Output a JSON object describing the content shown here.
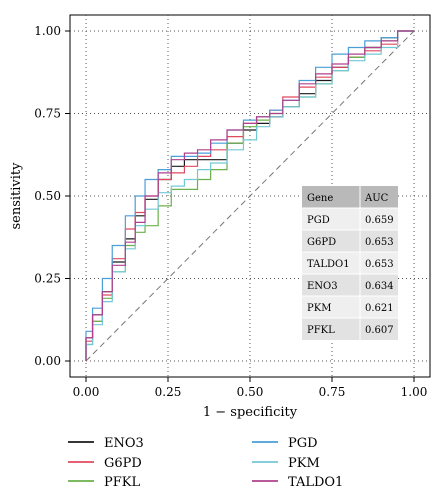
{
  "chart_data": {
    "type": "line",
    "title": "",
    "xlabel": "1 − specificity",
    "ylabel": "sensitivity",
    "xlim": [
      0,
      1
    ],
    "ylim": [
      0,
      1
    ],
    "xticks": [
      "0.00",
      "0.25",
      "0.50",
      "0.75",
      "1.00"
    ],
    "yticks": [
      "0.00",
      "0.25",
      "0.50",
      "0.75",
      "1.00"
    ],
    "grid": true,
    "legend_position": "bottom",
    "reference_line": "diagonal",
    "series": [
      {
        "name": "ENO3",
        "color": "#1a1a1a",
        "x": [
          0,
          0.02,
          0.05,
          0.08,
          0.12,
          0.15,
          0.18,
          0.22,
          0.26,
          0.3,
          0.34,
          0.38,
          0.43,
          0.48,
          0.52,
          0.56,
          0.6,
          0.65,
          0.7,
          0.75,
          0.8,
          0.85,
          0.9,
          0.95,
          1.0
        ],
        "y": [
          0,
          0.07,
          0.14,
          0.21,
          0.3,
          0.37,
          0.44,
          0.49,
          0.55,
          0.59,
          0.61,
          0.61,
          0.61,
          0.66,
          0.7,
          0.72,
          0.74,
          0.77,
          0.81,
          0.85,
          0.89,
          0.92,
          0.95,
          0.98,
          1.0
        ]
      },
      {
        "name": "G6PD",
        "color": "#e0495f",
        "x": [
          0,
          0.02,
          0.05,
          0.08,
          0.12,
          0.15,
          0.18,
          0.22,
          0.26,
          0.3,
          0.34,
          0.38,
          0.43,
          0.48,
          0.52,
          0.56,
          0.6,
          0.65,
          0.7,
          0.75,
          0.8,
          0.85,
          0.9,
          0.95,
          1.0
        ],
        "y": [
          0,
          0.06,
          0.12,
          0.2,
          0.31,
          0.4,
          0.45,
          0.5,
          0.55,
          0.57,
          0.59,
          0.62,
          0.64,
          0.68,
          0.72,
          0.74,
          0.76,
          0.8,
          0.83,
          0.86,
          0.89,
          0.92,
          0.94,
          0.96,
          1.0
        ]
      },
      {
        "name": "PFKL",
        "color": "#6bb04a",
        "x": [
          0,
          0.02,
          0.05,
          0.08,
          0.12,
          0.15,
          0.18,
          0.22,
          0.26,
          0.3,
          0.34,
          0.38,
          0.43,
          0.48,
          0.52,
          0.56,
          0.6,
          0.65,
          0.7,
          0.75,
          0.8,
          0.85,
          0.9,
          0.95,
          1.0
        ],
        "y": [
          0,
          0.05,
          0.12,
          0.19,
          0.27,
          0.35,
          0.39,
          0.41,
          0.47,
          0.52,
          0.52,
          0.55,
          0.58,
          0.66,
          0.71,
          0.73,
          0.75,
          0.77,
          0.8,
          0.84,
          0.88,
          0.92,
          0.95,
          0.97,
          1.0
        ]
      },
      {
        "name": "PGD",
        "color": "#4a9fd8",
        "x": [
          0,
          0.02,
          0.05,
          0.08,
          0.12,
          0.15,
          0.18,
          0.22,
          0.26,
          0.3,
          0.34,
          0.38,
          0.43,
          0.48,
          0.52,
          0.56,
          0.6,
          0.65,
          0.7,
          0.75,
          0.8,
          0.85,
          0.9,
          0.95,
          1.0
        ],
        "y": [
          0,
          0.09,
          0.16,
          0.25,
          0.35,
          0.44,
          0.5,
          0.55,
          0.58,
          0.62,
          0.62,
          0.63,
          0.66,
          0.7,
          0.73,
          0.74,
          0.76,
          0.79,
          0.85,
          0.89,
          0.93,
          0.95,
          0.97,
          0.98,
          1.0
        ]
      },
      {
        "name": "PKM",
        "color": "#73c8d6",
        "x": [
          0,
          0.02,
          0.05,
          0.08,
          0.12,
          0.15,
          0.18,
          0.22,
          0.26,
          0.3,
          0.34,
          0.38,
          0.43,
          0.48,
          0.52,
          0.56,
          0.6,
          0.65,
          0.7,
          0.75,
          0.8,
          0.85,
          0.9,
          0.95,
          1.0
        ],
        "y": [
          0,
          0.05,
          0.11,
          0.18,
          0.27,
          0.34,
          0.41,
          0.46,
          0.51,
          0.53,
          0.55,
          0.58,
          0.6,
          0.64,
          0.67,
          0.71,
          0.74,
          0.77,
          0.8,
          0.84,
          0.88,
          0.91,
          0.93,
          0.95,
          1.0
        ]
      },
      {
        "name": "TALDO1",
        "color": "#b0408e",
        "x": [
          0,
          0.02,
          0.05,
          0.08,
          0.12,
          0.15,
          0.18,
          0.22,
          0.26,
          0.3,
          0.34,
          0.38,
          0.43,
          0.48,
          0.52,
          0.56,
          0.6,
          0.65,
          0.7,
          0.75,
          0.8,
          0.85,
          0.9,
          0.95,
          1.0
        ],
        "y": [
          0,
          0.07,
          0.14,
          0.21,
          0.29,
          0.36,
          0.42,
          0.5,
          0.57,
          0.61,
          0.63,
          0.64,
          0.67,
          0.7,
          0.72,
          0.74,
          0.75,
          0.79,
          0.84,
          0.87,
          0.9,
          0.93,
          0.95,
          0.97,
          1.0
        ]
      }
    ],
    "auc_table": {
      "headers": [
        "Gene",
        "AUC"
      ],
      "rows": [
        [
          "PGD",
          "0.659"
        ],
        [
          "G6PD",
          "0.653"
        ],
        [
          "TALDO1",
          "0.653"
        ],
        [
          "ENO3",
          "0.634"
        ],
        [
          "PKM",
          "0.621"
        ],
        [
          "PFKL",
          "0.607"
        ]
      ]
    }
  }
}
